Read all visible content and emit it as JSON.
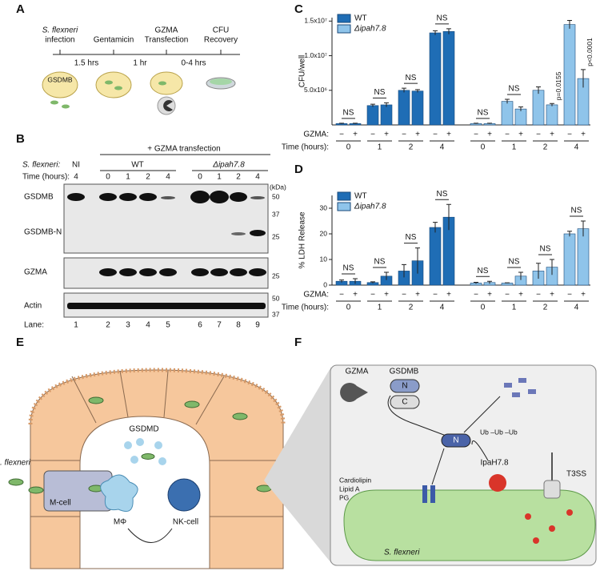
{
  "figure": {
    "panel_labels": [
      "A",
      "B",
      "C",
      "D",
      "E",
      "F"
    ]
  },
  "panel_a": {
    "steps": [
      "S. flexneri",
      "infection",
      "Gentamicin",
      "GZMA",
      "Transfection",
      "CFU",
      "Recovery"
    ],
    "durations": [
      "1.5 hrs",
      "1 hr",
      "0-4 hrs"
    ],
    "cell_label": "GSDMB"
  },
  "panel_b": {
    "header": "+ GZMA transfection",
    "strain_label": "S. flexneri:",
    "strains": [
      "NI",
      "WT",
      "Δipah7.8"
    ],
    "time_label": "Time (hours):",
    "times": [
      "4",
      "0",
      "1",
      "2",
      "4",
      "0",
      "1",
      "2",
      "4"
    ],
    "bands": [
      "GSDMB",
      "GSDMB-N",
      "GZMA",
      "Actin"
    ],
    "kda_label": "(kDa)",
    "markers": [
      "50",
      "37",
      "25",
      "25",
      "50",
      "37"
    ],
    "lane_label": "Lane:",
    "lanes": [
      "1",
      "2",
      "3",
      "4",
      "5",
      "6",
      "7",
      "8",
      "9"
    ]
  },
  "chart_data": [
    {
      "type": "bar",
      "ylabel": "CFU/well",
      "ylim": [
        0,
        15500000
      ],
      "yticks": [
        {
          "value": 5000000,
          "label": "5.0x10⁶"
        },
        {
          "value": 10000000,
          "label": "1.0x10⁷"
        },
        {
          "value": 15000000,
          "label": "1.5x10⁷"
        }
      ],
      "gzma_label": "GZMA:",
      "time_label": "Time (hours):",
      "gzma": [
        "−",
        "+",
        "−",
        "+",
        "−",
        "+",
        "−",
        "+",
        "−",
        "+",
        "−",
        "+",
        "−",
        "+",
        "−",
        "+"
      ],
      "time_groups": [
        "0",
        "1",
        "2",
        "4",
        "0",
        "1",
        "2",
        "4"
      ],
      "series": [
        {
          "name": "WT",
          "color": "#1f6db5",
          "values": [
            200000,
            200000,
            2800000,
            2900000,
            5000000,
            4900000,
            13300000,
            13500000
          ],
          "errors": [
            50000,
            50000,
            200000,
            300000,
            300000,
            200000,
            300000,
            400000
          ]
        },
        {
          "name": "Δipah7.8",
          "color": "#8fc4ea",
          "values": [
            200000,
            200000,
            3400000,
            2300000,
            5000000,
            2900000,
            14500000,
            6700000
          ],
          "errors": [
            50000,
            50000,
            300000,
            300000,
            500000,
            200000,
            600000,
            1300000
          ]
        }
      ],
      "significance": [
        "NS",
        "NS",
        "NS",
        "NS",
        "NS",
        "NS",
        "p=0.0155",
        "p<0.0001"
      ]
    },
    {
      "type": "bar",
      "ylabel": "% LDH Release",
      "ylim": [
        0,
        35
      ],
      "yticks": [
        0,
        10,
        20,
        30
      ],
      "gzma_label": "GZMA:",
      "time_label": "Time (hours):",
      "gzma": [
        "−",
        "+",
        "−",
        "+",
        "−",
        "+",
        "−",
        "+",
        "−",
        "+",
        "−",
        "+",
        "−",
        "+",
        "−",
        "+"
      ],
      "time_groups": [
        "0",
        "1",
        "2",
        "4",
        "0",
        "1",
        "2",
        "4"
      ],
      "series": [
        {
          "name": "WT",
          "color": "#1f6db5",
          "values": [
            1.5,
            1.5,
            1.0,
            3.5,
            5.5,
            9.5,
            22.5,
            26.5
          ],
          "errors": [
            0.5,
            1.0,
            0.3,
            1.5,
            2.5,
            5.0,
            2.0,
            5.0
          ]
        },
        {
          "name": "Δipah7.8",
          "color": "#8fc4ea",
          "values": [
            0.8,
            1.0,
            0.8,
            3.5,
            5.5,
            7.0,
            20.0,
            22.0
          ],
          "errors": [
            0.3,
            0.5,
            0.1,
            1.5,
            3.0,
            3.0,
            1.0,
            3.0
          ]
        }
      ],
      "significance": [
        "NS",
        "NS",
        "NS",
        "NS",
        "NS",
        "NS",
        "NS",
        "NS"
      ]
    }
  ],
  "panel_e": {
    "labels": [
      "GSDMD",
      ". flexneri",
      "M-cell",
      "MΦ",
      "NK-cell"
    ]
  },
  "panel_f": {
    "labels": [
      "GZMA",
      "GSDMB",
      "N",
      "C",
      "N",
      "Ub –Ub –Ub",
      "IpaH7.8",
      "T3SS",
      "Cardiolipin",
      "Lipid A",
      "PG",
      "S. flexneri"
    ]
  }
}
